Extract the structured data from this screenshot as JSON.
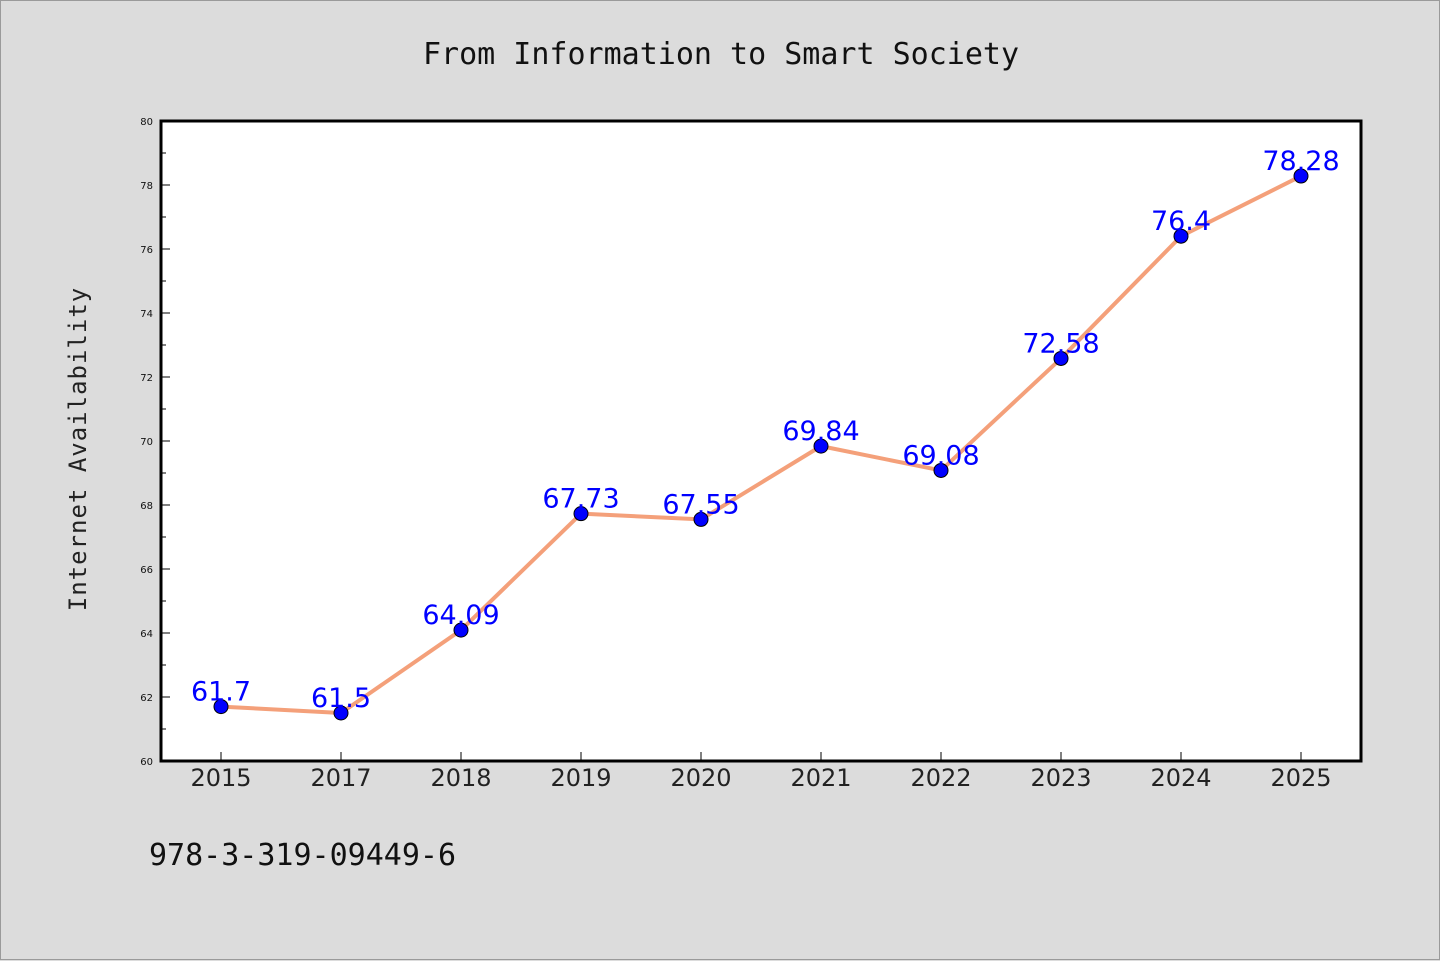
{
  "chart_data": {
    "type": "line",
    "title": "From Information to Smart Society",
    "xlabel": "",
    "ylabel": "Internet Availability",
    "categories": [
      "2015",
      "2017",
      "2018",
      "2019",
      "2020",
      "2021",
      "2022",
      "2023",
      "2024",
      "2025"
    ],
    "series": [
      {
        "values": [
          61.7,
          61.5,
          64.09,
          67.73,
          67.55,
          69.84,
          69.08,
          72.58,
          76.4,
          78.28
        ],
        "data_labels": [
          "61.7",
          "61.5",
          "64.09",
          "67.73",
          "67.55",
          "69.84",
          "69.08",
          "72.58",
          "76.4",
          "78.28"
        ],
        "line_color": "#f4a07a",
        "marker_color": "#0000ff"
      }
    ],
    "ylim": [
      60,
      80
    ],
    "yticks": [
      60,
      62,
      64,
      66,
      68,
      70,
      72,
      74,
      76,
      78,
      80
    ],
    "grid": false,
    "legend": "none"
  },
  "footer": {
    "text": "978-3-319-09449-6"
  },
  "colors": {
    "background": "#dcdcdc",
    "plot_background": "#ffffff",
    "line": "#f4a07a",
    "marker": "#0000ff",
    "data_label": "#0000ff"
  }
}
